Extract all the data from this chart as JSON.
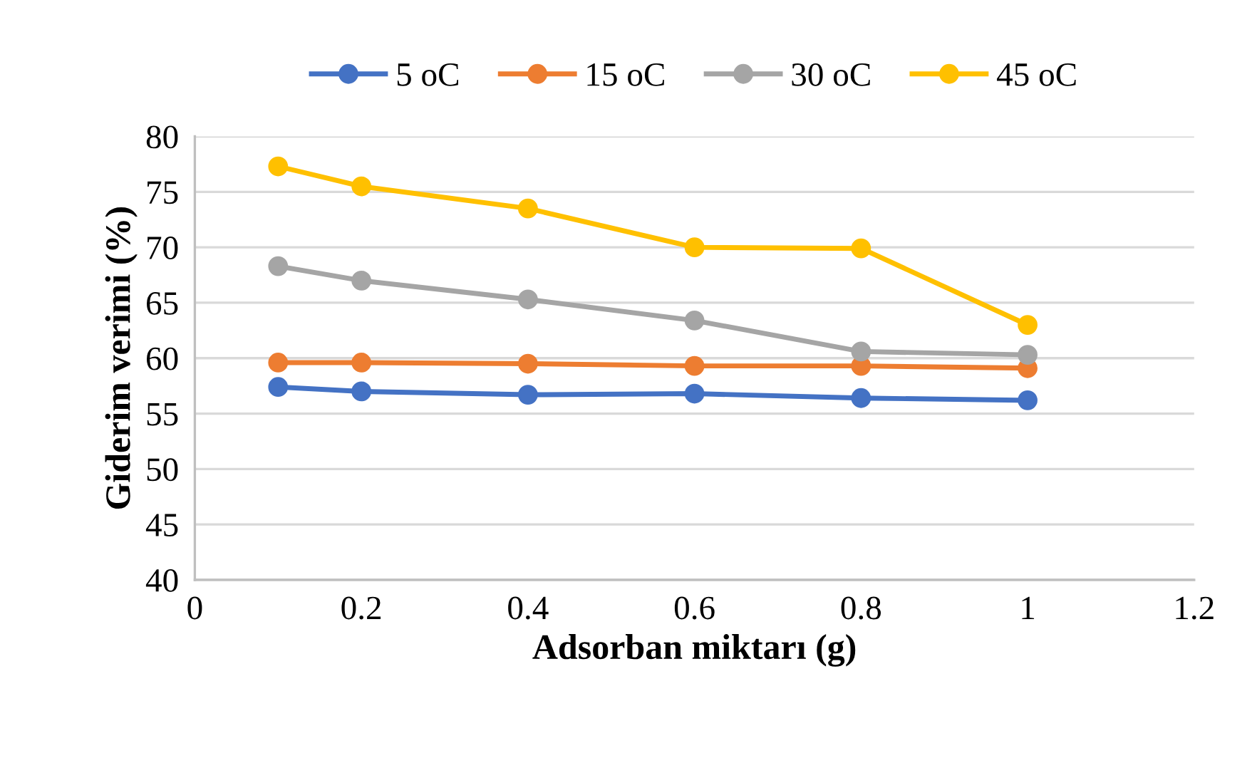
{
  "chart_data": {
    "type": "line",
    "xlabel": "Adsorban miktarı (g)",
    "ylabel": "Giderim verimi (%)",
    "x": [
      0.1,
      0.2,
      0.4,
      0.6,
      0.8,
      1
    ],
    "series": [
      {
        "name": "5 oC",
        "color": "#4472c4",
        "values": [
          57.4,
          57.0,
          56.7,
          56.8,
          56.4,
          56.2
        ]
      },
      {
        "name": "15 oC",
        "color": "#ed7d31",
        "values": [
          59.6,
          59.6,
          59.5,
          59.3,
          59.3,
          59.1
        ]
      },
      {
        "name": "30 oC",
        "color": "#a5a5a5",
        "values": [
          68.3,
          67.0,
          65.3,
          63.4,
          60.6,
          60.3
        ]
      },
      {
        "name": "45 oC",
        "color": "#ffc000",
        "values": [
          77.3,
          75.5,
          73.5,
          70.0,
          69.9,
          63.0
        ]
      }
    ],
    "xlim": [
      0,
      1.2
    ],
    "xticks": [
      0,
      0.2,
      0.4,
      0.6,
      0.8,
      1,
      1.2
    ],
    "ylim": [
      40,
      80
    ],
    "yticks": [
      40,
      45,
      50,
      55,
      60,
      65,
      70,
      75,
      80
    ],
    "grid": "y",
    "legend": "top",
    "marker": "circle",
    "line_style": "solid"
  }
}
